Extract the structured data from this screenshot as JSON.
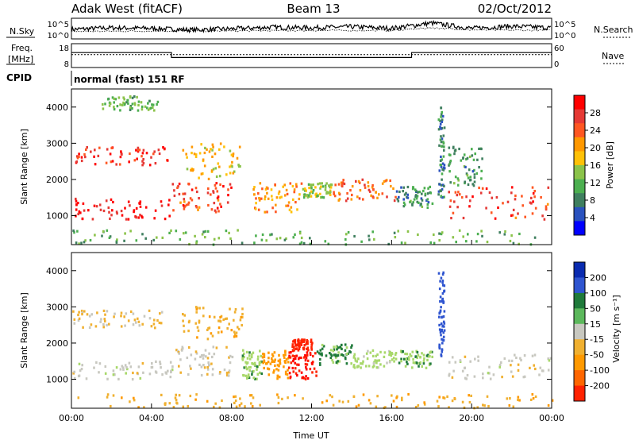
{
  "header": {
    "station": "Adak West (fitACF)",
    "beam": "Beam 13",
    "date": "02/Oct/2012"
  },
  "left_labels": {
    "nsky": "N.Sky",
    "freq": "Freq.",
    "freq_unit": "[MHz]",
    "cpid": "CPID"
  },
  "right_labels": {
    "nsearch": "N.Search",
    "nave": "Nave"
  },
  "cpid_text": "normal (fast) 151 RF",
  "colors": {
    "power": [
      "#0000ff",
      "#2a52be",
      "#3f7f5f",
      "#4caf50",
      "#8bc34a",
      "#ffc107",
      "#ff9800",
      "#ff5722",
      "#e53935",
      "#ff0000"
    ],
    "velocity": [
      "#0a2bb0",
      "#2f55d0",
      "#1f7a3a",
      "#5cb85c",
      "#a8d86a",
      "#c8c8c0",
      "#f0b030",
      "#ff9900",
      "#ff6600",
      "#ff2200",
      "#ff0000"
    ]
  },
  "chart_data": [
    {
      "type": "line",
      "name": "noise-panel",
      "xlim": [
        0,
        24
      ],
      "left_axis": {
        "label": "N.Sky",
        "ticks": [
          "10^5",
          "10^0"
        ]
      },
      "right_axis": {
        "label": "N.Search",
        "ticks": [
          "10^5",
          "10^0"
        ]
      },
      "series": [
        {
          "values": [
            [
              0,
              1.2
            ],
            [
              2,
              1.5
            ],
            [
              4,
              1.4
            ],
            [
              6,
              1.1
            ],
            [
              8,
              1.3
            ],
            [
              10,
              1.6
            ],
            [
              12,
              1.5
            ],
            [
              14,
              1.7
            ],
            [
              16,
              1.4
            ],
            [
              18,
              2.4
            ],
            [
              20,
              1.4
            ],
            [
              22,
              1.8
            ],
            [
              24,
              1.5
            ]
          ]
        },
        {
          "values": [
            [
              0,
              0.8
            ],
            [
              4,
              0.9
            ],
            [
              8,
              0.9
            ],
            [
              12,
              1.0
            ],
            [
              16,
              1.0
            ],
            [
              18,
              1.5
            ],
            [
              20,
              1.1
            ],
            [
              24,
              1.0
            ]
          ]
        }
      ]
    },
    {
      "type": "line",
      "name": "frequency-panel",
      "xlim": [
        0,
        24
      ],
      "left_axis": {
        "label": "Freq. [MHz]",
        "ticks": [
          "18",
          "8"
        ],
        "ylim": [
          8,
          18
        ]
      },
      "right_axis": {
        "label": "Nave",
        "ticks": [
          "60",
          "0"
        ],
        "ylim": [
          0,
          60
        ]
      },
      "series": [
        {
          "values": [
            [
              0,
              14.6
            ],
            [
              5,
              14.6
            ],
            [
              5,
              12.0
            ],
            [
              17,
              12.0
            ],
            [
              17,
              14.6
            ],
            [
              24,
              14.6
            ]
          ]
        },
        {
          "values": [
            [
              0,
              33
            ],
            [
              24,
              33
            ]
          ]
        }
      ]
    },
    {
      "type": "heatmap",
      "name": "power-panel",
      "xlabel": "",
      "ylabel": "Slant Range [km]",
      "xlim": [
        0,
        24
      ],
      "ylim": [
        200,
        4500
      ],
      "yticks": [
        1000,
        2000,
        3000,
        4000
      ],
      "colorbar": {
        "label": "Power [dB]",
        "ticks": [
          28,
          24,
          20,
          16,
          12,
          8,
          4
        ]
      },
      "regions": [
        {
          "t0": 0,
          "t1": 5,
          "r0": 900,
          "r1": 1500,
          "v": 30
        },
        {
          "t0": 0,
          "t1": 4.8,
          "r0": 2400,
          "r1": 2900,
          "v": 27
        },
        {
          "t0": 1.5,
          "t1": 4.3,
          "r0": 3900,
          "r1": 4300,
          "v": 12
        },
        {
          "t0": 5,
          "t1": 8,
          "r0": 1100,
          "r1": 1900,
          "v": 26
        },
        {
          "t0": 5.5,
          "t1": 8.5,
          "r0": 2000,
          "r1": 3000,
          "v": 18
        },
        {
          "t0": 9,
          "t1": 11.5,
          "r0": 1100,
          "r1": 1900,
          "v": 20
        },
        {
          "t0": 11.5,
          "t1": 13,
          "r0": 1500,
          "r1": 1900,
          "v": 14
        },
        {
          "t0": 13,
          "t1": 16.2,
          "r0": 1400,
          "r1": 2000,
          "v": 24
        },
        {
          "t0": 16.2,
          "t1": 18,
          "r0": 1200,
          "r1": 1800,
          "v": 9
        },
        {
          "t0": 18.3,
          "t1": 18.6,
          "r0": 1500,
          "r1": 4000,
          "v": 8
        },
        {
          "t0": 18.8,
          "t1": 24,
          "r0": 900,
          "r1": 1800,
          "v": 26
        },
        {
          "t0": 18.8,
          "t1": 20.5,
          "r0": 1800,
          "r1": 2900,
          "v": 10
        },
        {
          "t0": 0,
          "t1": 24,
          "r0": 200,
          "r1": 600,
          "v": 12
        }
      ]
    },
    {
      "type": "heatmap",
      "name": "velocity-panel",
      "xlabel": "Time UT",
      "ylabel": "Slant Range [km]",
      "xlim": [
        0,
        24
      ],
      "ylim": [
        200,
        4500
      ],
      "xticks": [
        "00:00",
        "04:00",
        "08:00",
        "12:00",
        "16:00",
        "20:00",
        "00:00"
      ],
      "yticks": [
        1000,
        2000,
        3000,
        4000
      ],
      "colorbar": {
        "label": "Velocity [m s⁻¹]",
        "ticks": [
          200,
          100,
          50,
          15,
          -15,
          -50,
          -100,
          -200
        ]
      },
      "regions": [
        {
          "t0": 0,
          "t1": 5,
          "r0": 1000,
          "r1": 1500,
          "v": 0
        },
        {
          "t0": 0,
          "t1": 4.5,
          "r0": 2400,
          "r1": 2900,
          "v": -20
        },
        {
          "t0": 5,
          "t1": 8,
          "r0": 1100,
          "r1": 1900,
          "v": -5
        },
        {
          "t0": 5.5,
          "t1": 8.5,
          "r0": 2100,
          "r1": 3000,
          "v": -40
        },
        {
          "t0": 8.5,
          "t1": 9.5,
          "r0": 1000,
          "r1": 1800,
          "v": 40
        },
        {
          "t0": 9.5,
          "t1": 10.8,
          "r0": 1000,
          "r1": 1800,
          "v": -80
        },
        {
          "t0": 10.8,
          "t1": 12.2,
          "r0": 1000,
          "r1": 1800,
          "v": -200
        },
        {
          "t0": 11,
          "t1": 12,
          "r0": 1800,
          "r1": 2100,
          "v": -180
        },
        {
          "t0": 12.2,
          "t1": 14,
          "r0": 1400,
          "r1": 2000,
          "v": 60
        },
        {
          "t0": 14,
          "t1": 16.2,
          "r0": 1300,
          "r1": 1800,
          "v": 30
        },
        {
          "t0": 16.2,
          "t1": 18,
          "r0": 1300,
          "r1": 1800,
          "v": 45
        },
        {
          "t0": 18.3,
          "t1": 18.6,
          "r0": 1500,
          "r1": 4000,
          "v": 150
        },
        {
          "t0": 18.8,
          "t1": 24,
          "r0": 1000,
          "r1": 1700,
          "v": 0
        },
        {
          "t0": 0,
          "t1": 24,
          "r0": 200,
          "r1": 600,
          "v": -40
        }
      ]
    }
  ]
}
